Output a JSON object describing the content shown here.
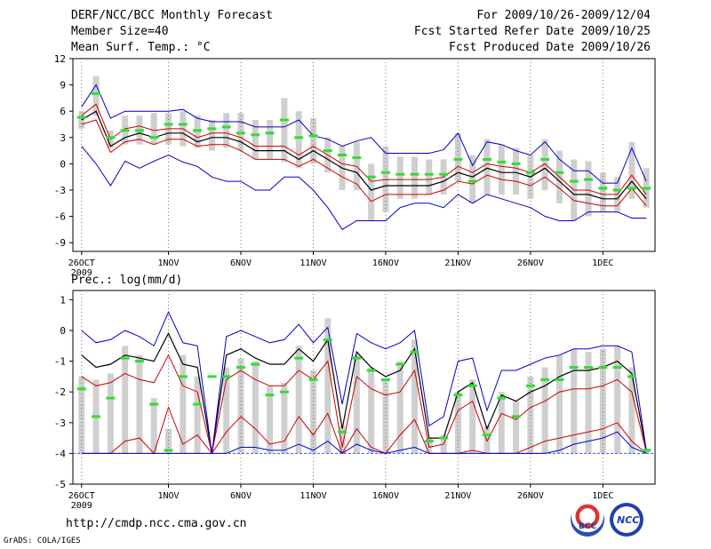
{
  "header": {
    "title": "DERF/NCC/BCC Monthly Forecast",
    "member": "Member Size=40",
    "variable": "Mean Surf. Temp.: °C",
    "period": "For 2009/10/26-2009/12/04",
    "started": "Fcst Started Refer Date 2009/10/25",
    "produced": "Fcst Produced Date 2009/10/26"
  },
  "footer": {
    "url": "http://cmdp.ncc.cma.gov.cn",
    "credit": "GrADS: COLA/IGES"
  },
  "logos": {
    "left": "BCC",
    "right": "NCC"
  },
  "colors": {
    "ensemble_mean": "#000000",
    "inner_bound": "#cc0000",
    "outer_bound": "#0000cc",
    "member_mode": "#33dd33",
    "bar": "#cfcfcf",
    "zero_line": "#3355ff"
  },
  "chart_data": [
    {
      "type": "line",
      "title": "Mean Surf. Temp.: °C",
      "x_tick_labels": [
        "26OCT",
        "1NOV",
        "6NOV",
        "11NOV",
        "16NOV",
        "21NOV",
        "26NOV",
        "1DEC"
      ],
      "x_year_label": "2009",
      "x_tick_days": [
        0,
        6,
        11,
        16,
        21,
        26,
        31,
        36
      ],
      "ylim": [
        -10,
        12
      ],
      "yticks": [
        12,
        9,
        6,
        3,
        0,
        -3,
        -6,
        -9
      ],
      "days": 40,
      "series": [
        {
          "name": "ensemble mean",
          "values": [
            5.0,
            6.0,
            2.0,
            3.0,
            3.5,
            3.0,
            3.5,
            3.5,
            2.5,
            3.0,
            3.0,
            2.5,
            1.5,
            1.5,
            1.5,
            0.5,
            1.5,
            0.5,
            -0.5,
            -1.0,
            -3.0,
            -2.5,
            -2.5,
            -2.5,
            -2.5,
            -2.0,
            -1.0,
            -1.5,
            -0.5,
            -1.0,
            -1.0,
            -1.5,
            -0.5,
            -2.0,
            -3.5,
            -3.5,
            -4.0,
            -4.0,
            -2.0,
            -4.0
          ]
        },
        {
          "name": "upper inner",
          "values": [
            5.5,
            6.8,
            2.8,
            4.0,
            4.3,
            3.8,
            4.0,
            4.0,
            3.0,
            3.5,
            3.5,
            3.0,
            2.0,
            2.0,
            2.0,
            1.0,
            2.0,
            1.0,
            0.0,
            -0.3,
            -2.0,
            -1.8,
            -1.8,
            -1.8,
            -1.8,
            -1.5,
            -0.3,
            -1.0,
            0.0,
            -0.3,
            -0.5,
            -1.0,
            0.0,
            -1.5,
            -3.0,
            -3.0,
            -3.5,
            -3.5,
            -1.3,
            -3.5
          ]
        },
        {
          "name": "lower inner",
          "values": [
            4.5,
            5.0,
            1.3,
            2.5,
            2.8,
            2.2,
            2.8,
            2.8,
            2.0,
            2.2,
            2.2,
            1.5,
            0.5,
            0.5,
            0.5,
            -0.3,
            0.5,
            -0.5,
            -1.5,
            -2.3,
            -4.3,
            -3.5,
            -3.5,
            -3.5,
            -3.5,
            -3.0,
            -2.0,
            -2.3,
            -1.3,
            -1.8,
            -2.0,
            -2.5,
            -1.5,
            -2.8,
            -4.2,
            -4.5,
            -4.8,
            -4.8,
            -2.8,
            -4.8
          ]
        },
        {
          "name": "upper outer",
          "values": [
            6.5,
            9.0,
            5.2,
            6.0,
            6.0,
            6.0,
            6.0,
            6.2,
            5.2,
            4.8,
            4.8,
            4.8,
            4.2,
            4.2,
            4.2,
            5.0,
            3.2,
            2.8,
            2.0,
            2.6,
            3.0,
            1.2,
            1.2,
            1.2,
            1.2,
            1.6,
            3.5,
            -0.2,
            2.5,
            2.2,
            1.5,
            1.0,
            2.5,
            0.5,
            -0.8,
            -0.8,
            -2.2,
            -2.2,
            1.8,
            -2.0
          ]
        },
        {
          "name": "lower outer",
          "values": [
            2.0,
            0.0,
            -2.5,
            0.3,
            -0.5,
            0.3,
            1.0,
            0.2,
            -0.3,
            -1.5,
            -2.0,
            -2.0,
            -3.0,
            -3.0,
            -1.5,
            -1.5,
            -3.0,
            -5.0,
            -7.5,
            -6.5,
            -6.5,
            -6.5,
            -5.0,
            -4.5,
            -4.5,
            -5.0,
            -3.5,
            -4.5,
            -3.5,
            -4.0,
            -4.5,
            -5.0,
            -6.0,
            -6.5,
            -6.5,
            -5.5,
            -5.5,
            -5.5,
            -6.2,
            -6.2
          ]
        },
        {
          "name": "member mode",
          "values": [
            5.3,
            8.0,
            3.0,
            3.8,
            3.8,
            3.0,
            4.5,
            4.5,
            3.8,
            4.0,
            4.2,
            3.5,
            3.3,
            3.5,
            5.0,
            3.0,
            3.2,
            1.5,
            1.0,
            0.7,
            -1.5,
            -1.0,
            -1.2,
            -1.2,
            -1.2,
            -1.2,
            0.5,
            -2.0,
            0.5,
            0.2,
            0.0,
            -1.0,
            0.5,
            -1.0,
            -2.0,
            -1.8,
            -2.8,
            -3.0,
            -2.8,
            -2.8
          ]
        }
      ],
      "bars": {
        "low": [
          4.0,
          5.5,
          1.8,
          2.2,
          2.2,
          2.2,
          2.2,
          2.0,
          1.8,
          1.5,
          1.8,
          1.5,
          0.5,
          0.5,
          0.2,
          -0.5,
          0.0,
          -1.0,
          -3.0,
          -3.0,
          -6.5,
          -5.5,
          -4.0,
          -4.0,
          -3.5,
          -3.5,
          -2.0,
          -4.5,
          -3.5,
          -3.5,
          -3.5,
          -4.0,
          -3.0,
          -4.5,
          -6.5,
          -6.0,
          -5.5,
          -5.5,
          -4.0,
          -5.0
        ],
        "high": [
          6.0,
          10.0,
          3.8,
          5.5,
          5.5,
          5.8,
          5.8,
          6.0,
          5.5,
          5.0,
          5.8,
          5.8,
          5.0,
          5.0,
          7.5,
          6.0,
          5.2,
          3.0,
          2.0,
          2.5,
          0.0,
          2.0,
          0.8,
          0.8,
          0.5,
          0.5,
          3.5,
          1.0,
          2.8,
          2.2,
          1.8,
          1.0,
          2.8,
          1.5,
          0.5,
          0.3,
          -1.0,
          -1.5,
          2.5,
          -0.5
        ]
      }
    },
    {
      "type": "line",
      "title": "Prec.: log(mm/d)",
      "x_tick_labels": [
        "26OCT",
        "1NOV",
        "6NOV",
        "11NOV",
        "16NOV",
        "21NOV",
        "26NOV",
        "1DEC"
      ],
      "x_year_label": "2009",
      "x_tick_days": [
        0,
        6,
        11,
        16,
        21,
        26,
        31,
        36
      ],
      "ylim": [
        -5,
        1.3
      ],
      "yticks": [
        1,
        0,
        -1,
        -2,
        -3,
        -4,
        -5
      ],
      "baseline": -4,
      "days": 40,
      "series": [
        {
          "name": "ensemble mean",
          "values": [
            -0.8,
            -1.2,
            -1.1,
            -0.8,
            -0.9,
            -1.0,
            -0.1,
            -1.1,
            -1.2,
            -4.0,
            -0.8,
            -0.6,
            -0.9,
            -1.1,
            -1.1,
            -0.6,
            -1.0,
            -0.3,
            -3.2,
            -0.7,
            -1.2,
            -1.5,
            -1.3,
            -0.6,
            -3.5,
            -3.5,
            -2.0,
            -1.7,
            -3.2,
            -2.1,
            -2.3,
            -2.0,
            -1.8,
            -1.5,
            -1.3,
            -1.3,
            -1.2,
            -1.0,
            -1.4,
            -3.9
          ]
        },
        {
          "name": "upper inner",
          "values": [
            -1.5,
            -1.8,
            -1.7,
            -1.4,
            -1.6,
            -1.7,
            -0.8,
            -1.8,
            -2.0,
            -4.0,
            -1.6,
            -1.3,
            -1.6,
            -1.8,
            -1.8,
            -1.3,
            -1.6,
            -1.0,
            -3.8,
            -1.5,
            -1.9,
            -2.1,
            -2.0,
            -1.3,
            -3.8,
            -3.7,
            -2.6,
            -2.3,
            -3.6,
            -2.7,
            -2.9,
            -2.5,
            -2.3,
            -2.0,
            -1.9,
            -1.9,
            -1.8,
            -1.6,
            -2.0,
            -3.95
          ]
        },
        {
          "name": "lower inner",
          "values": [
            -4.0,
            -4.0,
            -4.0,
            -3.6,
            -3.5,
            -4.0,
            -2.5,
            -3.7,
            -3.4,
            -4.0,
            -3.3,
            -2.8,
            -3.2,
            -3.7,
            -3.6,
            -2.8,
            -3.4,
            -2.7,
            -4.0,
            -3.2,
            -3.8,
            -4.0,
            -3.4,
            -2.9,
            -4.0,
            -4.0,
            -4.0,
            -3.9,
            -4.0,
            -4.0,
            -4.0,
            -3.8,
            -3.6,
            -3.5,
            -3.4,
            -3.3,
            -3.2,
            -3.0,
            -3.6,
            -4.0
          ]
        },
        {
          "name": "upper outer",
          "values": [
            0.0,
            -0.4,
            -0.3,
            0.0,
            -0.2,
            -0.5,
            0.6,
            -0.4,
            -0.5,
            -4.0,
            -0.2,
            0.0,
            -0.2,
            -0.4,
            -0.3,
            0.2,
            -0.4,
            0.1,
            -2.4,
            -0.1,
            -0.4,
            -0.6,
            -0.4,
            0.0,
            -3.1,
            -2.8,
            -1.0,
            -0.9,
            -2.6,
            -1.3,
            -1.3,
            -1.1,
            -0.9,
            -0.8,
            -0.6,
            -0.6,
            -0.5,
            -0.5,
            -0.7,
            -3.9
          ]
        },
        {
          "name": "lower outer",
          "values": [
            -4.0,
            -4.0,
            -4.0,
            -4.0,
            -4.0,
            -4.0,
            -4.0,
            -4.0,
            -4.0,
            -4.0,
            -4.0,
            -3.8,
            -3.8,
            -3.9,
            -3.9,
            -3.7,
            -3.9,
            -3.6,
            -4.0,
            -3.7,
            -3.9,
            -4.0,
            -3.9,
            -3.8,
            -4.0,
            -4.0,
            -4.0,
            -4.0,
            -4.0,
            -4.0,
            -4.0,
            -4.0,
            -4.0,
            -3.9,
            -3.7,
            -3.6,
            -3.5,
            -3.3,
            -3.8,
            -4.0
          ]
        },
        {
          "name": "member mode",
          "values": [
            -1.9,
            -2.8,
            -2.2,
            -0.9,
            -1.0,
            -2.4,
            -3.9,
            -1.5,
            -2.4,
            -1.5,
            -1.5,
            -1.2,
            -1.1,
            -2.1,
            -2.0,
            -0.9,
            -1.6,
            -0.3,
            -3.3,
            -0.9,
            -1.3,
            -1.6,
            -1.1,
            -0.7,
            -3.6,
            -3.5,
            -2.1,
            -1.8,
            -3.4,
            -2.2,
            -2.8,
            -1.8,
            -1.6,
            -1.6,
            -1.2,
            -1.2,
            -1.2,
            -1.2,
            -1.5,
            -3.9
          ]
        }
      ],
      "bars": {
        "low": [
          -4.0,
          -4.0,
          -4.0,
          -4.0,
          -4.0,
          -4.0,
          -4.0,
          -4.0,
          -4.0,
          -4.0,
          -4.0,
          -4.0,
          -4.0,
          -4.0,
          -4.0,
          -4.0,
          -4.0,
          -4.0,
          -4.0,
          -4.0,
          -4.0,
          -4.0,
          -4.0,
          -4.0,
          -4.0,
          -4.0,
          -4.0,
          -4.0,
          -4.0,
          -4.0,
          -4.0,
          -4.0,
          -4.0,
          -4.0,
          -4.0,
          -4.0,
          -4.0,
          -4.0,
          -4.0,
          -4.0
        ],
        "high": [
          -1.5,
          -1.6,
          -1.4,
          -0.5,
          -0.8,
          -2.2,
          -3.2,
          -0.8,
          -1.5,
          -4.0,
          -1.2,
          -0.9,
          -1.0,
          -1.8,
          -1.7,
          -0.5,
          -1.3,
          0.4,
          -3.1,
          -0.8,
          -1.2,
          -1.6,
          -1.0,
          -0.3,
          -3.5,
          -3.4,
          -2.0,
          -1.6,
          -3.1,
          -2.0,
          -2.3,
          -1.5,
          -1.2,
          -0.8,
          -0.6,
          -0.7,
          -0.6,
          -0.5,
          -1.2,
          -3.9
        ]
      }
    }
  ]
}
